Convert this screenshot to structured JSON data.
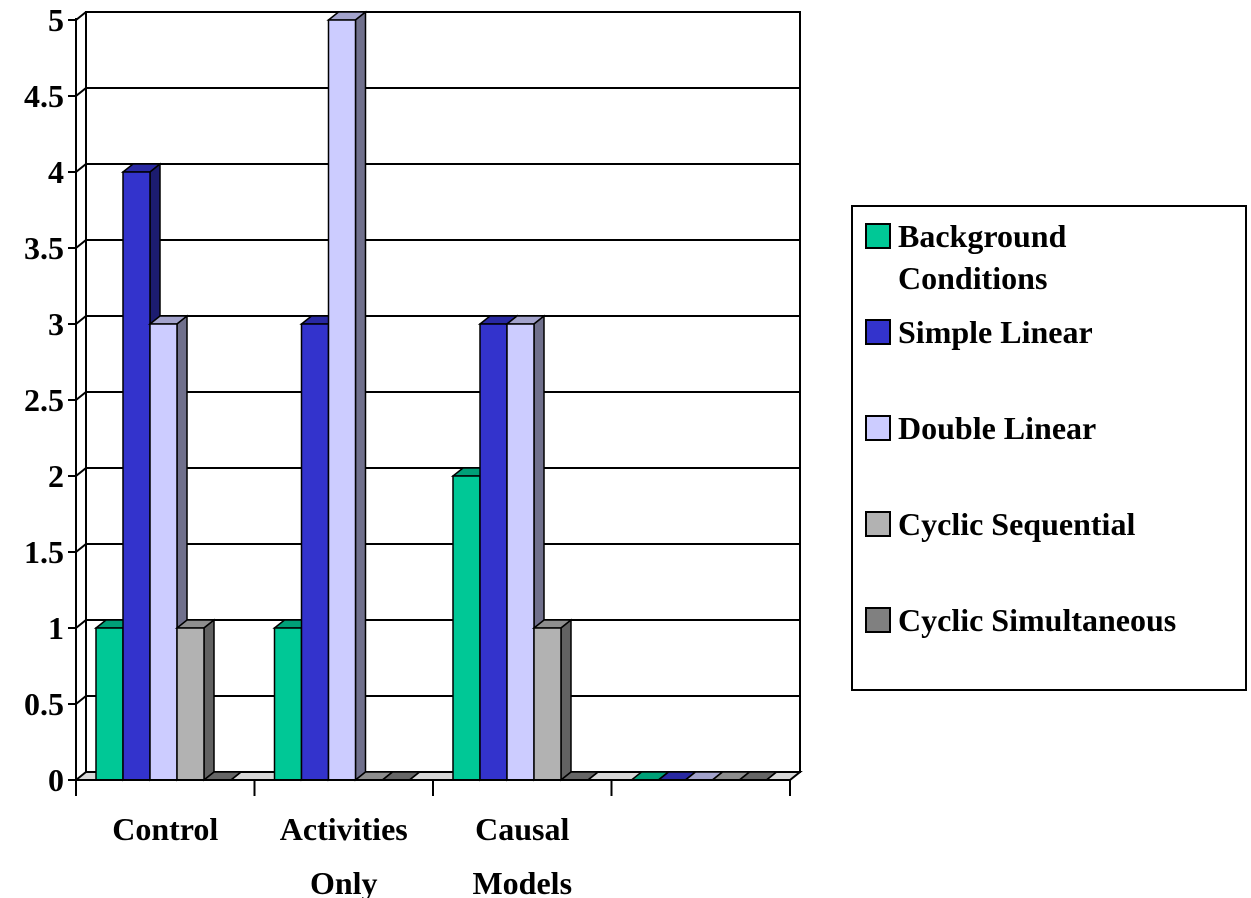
{
  "chart_data": {
    "type": "bar",
    "title": "",
    "xlabel": "",
    "ylabel": "",
    "ylim": [
      0,
      5
    ],
    "y_ticks": [
      "0",
      "0.5",
      "1",
      "1.5",
      "2",
      "2.5",
      "3",
      "3.5",
      "4",
      "4.5",
      "5"
    ],
    "grid": true,
    "legend_position": "right",
    "categories": [
      [
        "Control"
      ],
      [
        "Activities",
        "Only"
      ],
      [
        "Causal",
        "Models"
      ],
      [
        ""
      ]
    ],
    "series": [
      {
        "name": "Background Conditions",
        "legend_lines": [
          "Background",
          "Conditions"
        ],
        "color": "#00c896",
        "values": [
          1,
          1,
          2,
          0
        ]
      },
      {
        "name": "Simple Linear",
        "legend_lines": [
          "Simple Linear"
        ],
        "color": "#3333cc",
        "values": [
          4,
          3,
          3,
          0
        ]
      },
      {
        "name": "Double Linear",
        "legend_lines": [
          "Double Linear"
        ],
        "color": "#ccccff",
        "values": [
          3,
          5,
          3,
          0
        ]
      },
      {
        "name": "Cyclic Sequential",
        "legend_lines": [
          "Cyclic Sequential"
        ],
        "color": "#b2b2b2",
        "values": [
          1,
          0,
          1,
          0
        ]
      },
      {
        "name": "Cyclic Simultaneous",
        "legend_lines": [
          "Cyclic Simultaneous"
        ],
        "color": "#808080",
        "values": [
          0,
          0,
          0,
          0
        ]
      }
    ]
  }
}
